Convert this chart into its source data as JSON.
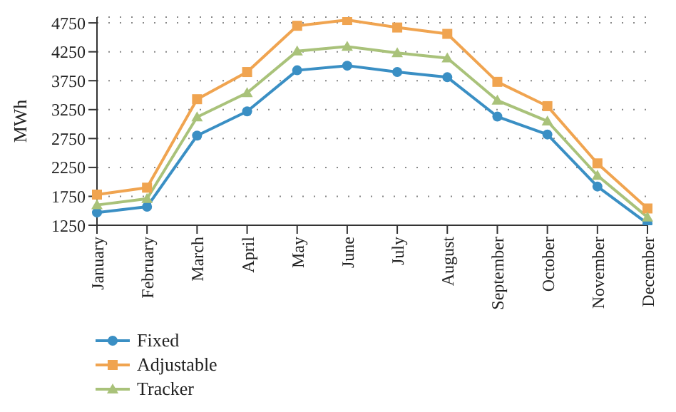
{
  "chart_data": {
    "type": "line",
    "ylabel": "MWh",
    "categories": [
      "January",
      "February",
      "March",
      "April",
      "May",
      "June",
      "July",
      "August",
      "September",
      "October",
      "November",
      "December"
    ],
    "series": [
      {
        "name": "Fixed",
        "color": "#3a8fc4",
        "marker": "circle",
        "values": [
          1470,
          1570,
          2800,
          3220,
          3930,
          4010,
          3900,
          3810,
          3130,
          2820,
          1920,
          1280
        ]
      },
      {
        "name": "Adjustable",
        "color": "#f0a450",
        "marker": "square",
        "values": [
          1780,
          1900,
          3430,
          3900,
          4700,
          4800,
          4670,
          4560,
          3730,
          3310,
          2320,
          1540
        ]
      },
      {
        "name": "Tracker",
        "color": "#a9c27a",
        "marker": "triangle",
        "values": [
          1600,
          1710,
          3120,
          3540,
          4260,
          4340,
          4230,
          4140,
          3410,
          3050,
          2110,
          1390
        ]
      }
    ],
    "ylim": [
      1250,
      4850
    ],
    "yticks": [
      1250,
      1750,
      2250,
      2750,
      3250,
      3750,
      4250,
      4750
    ],
    "grid": "y",
    "legend": "bottom left",
    "line_style": "solid"
  }
}
